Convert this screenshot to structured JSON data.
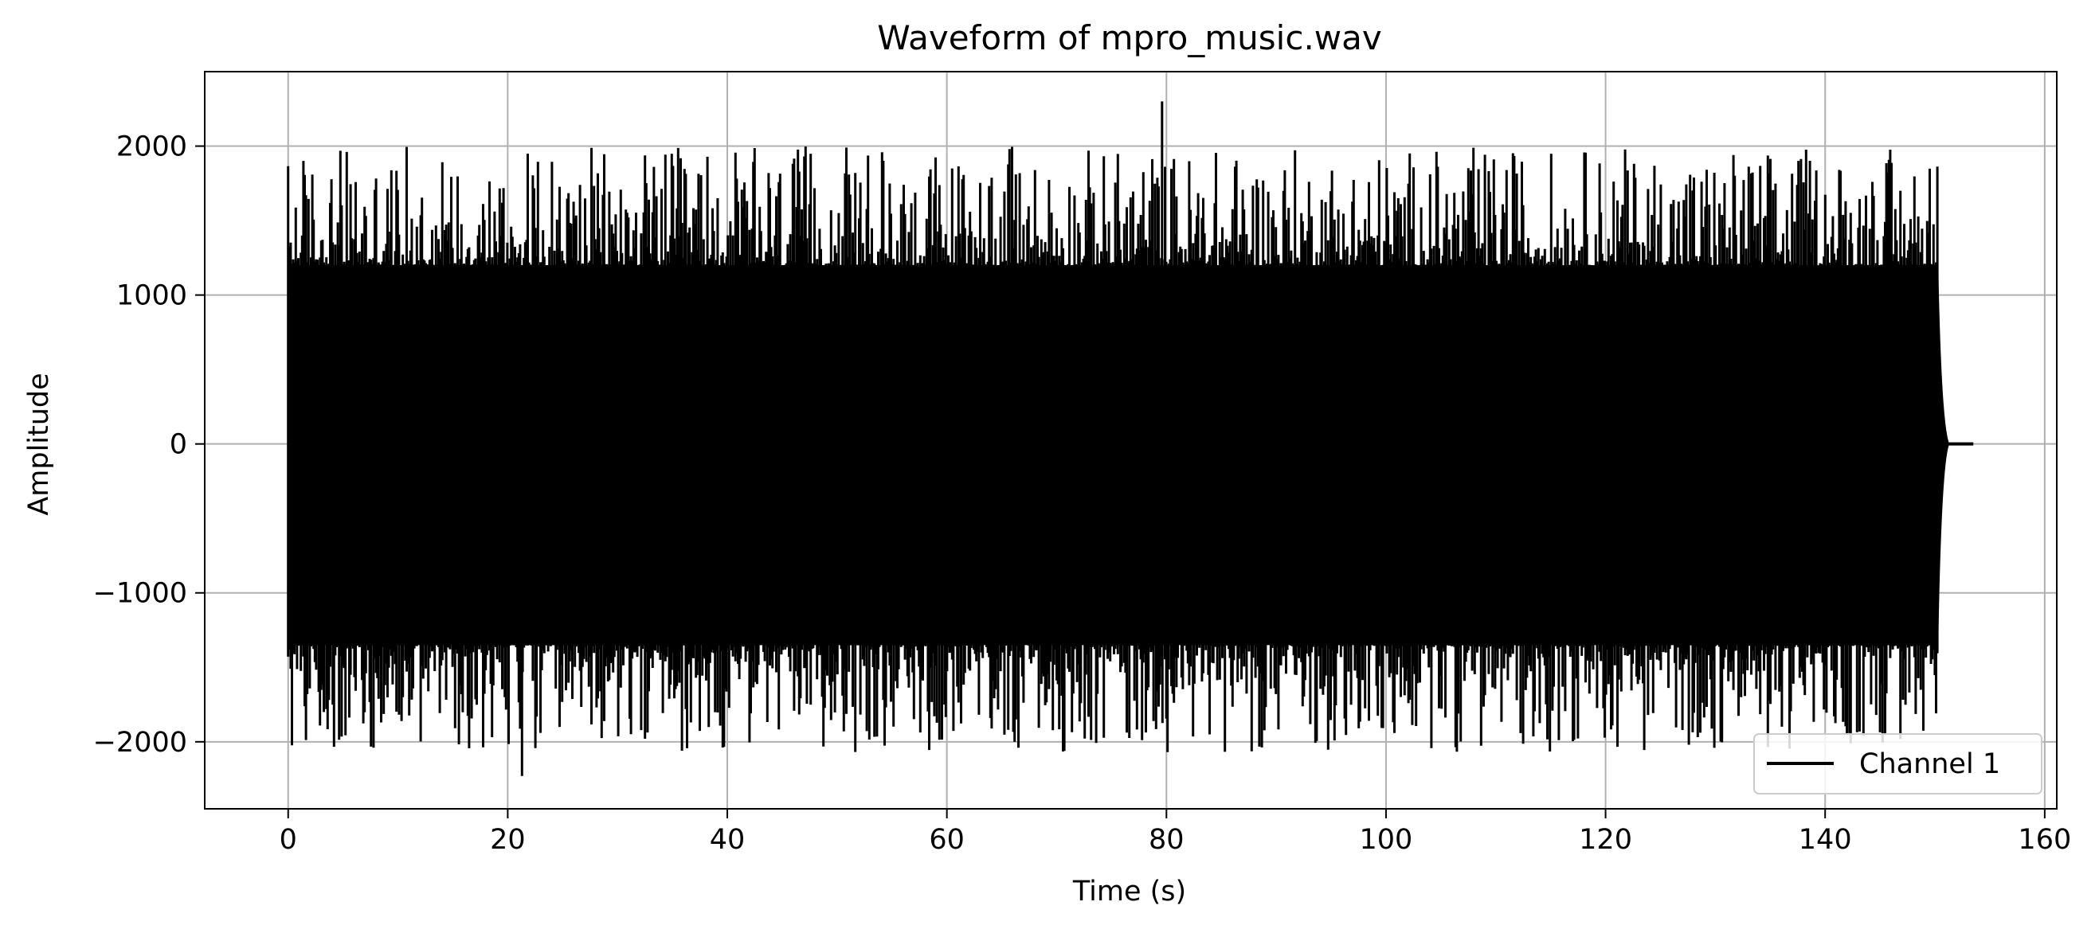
{
  "chart_data": {
    "type": "line",
    "title": "Waveform of mpro_music.wav",
    "xlabel": "Time (s)",
    "ylabel": "Amplitude",
    "xlim": [
      -7.6,
      161.1
    ],
    "ylim": [
      -2450,
      2500
    ],
    "x_ticks": [
      0,
      20,
      40,
      60,
      80,
      100,
      120,
      140,
      160
    ],
    "x_tick_labels": [
      "0",
      "20",
      "40",
      "60",
      "80",
      "100",
      "120",
      "140",
      "160"
    ],
    "y_ticks": [
      -2000,
      -1000,
      0,
      1000,
      2000
    ],
    "y_tick_labels": [
      "−2000",
      "−1000",
      "0",
      "1000",
      "2000"
    ],
    "grid": true,
    "legend_position": "lower-right",
    "series": [
      {
        "name": "Channel 1",
        "color": "#000000",
        "x_range": [
          0,
          153.5
        ],
        "signal_end": 150.3,
        "typical_envelope": {
          "positive": 1200,
          "negative": -1350
        },
        "peak_max": {
          "x": 79.6,
          "y": 2300
        },
        "peak_min": {
          "x": 21.3,
          "y": -2230
        },
        "tail_value": 0
      }
    ]
  }
}
